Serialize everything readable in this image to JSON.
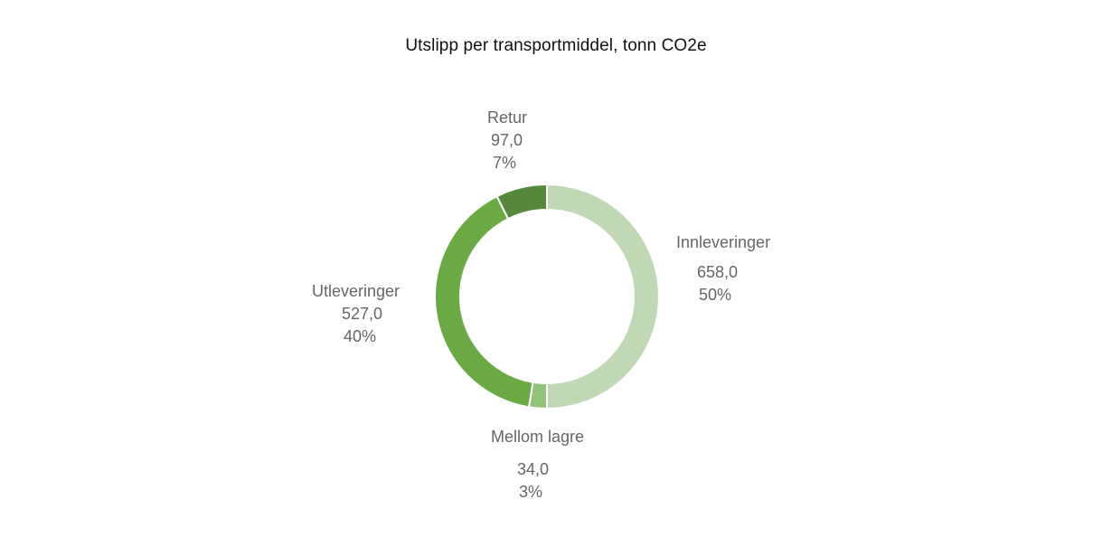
{
  "chart_data": {
    "type": "pie",
    "variant": "donut",
    "title": "Utslipp per transportmiddel, tonn CO2e",
    "slices": [
      {
        "name": "Innleveringer",
        "value": "658,0",
        "num": 658.0,
        "percent": "50%",
        "color": "#c0d9b4"
      },
      {
        "name": "Mellom lagre",
        "value": "34,0",
        "num": 34.0,
        "percent": "3%",
        "color": "#93c27c"
      },
      {
        "name": "Utleveringer",
        "value": "527,0",
        "num": 527.0,
        "percent": "40%",
        "color": "#6ba944"
      },
      {
        "name": "Retur",
        "value": "97,0",
        "num": 97.0,
        "percent": "7%",
        "color": "#55883a"
      }
    ]
  }
}
